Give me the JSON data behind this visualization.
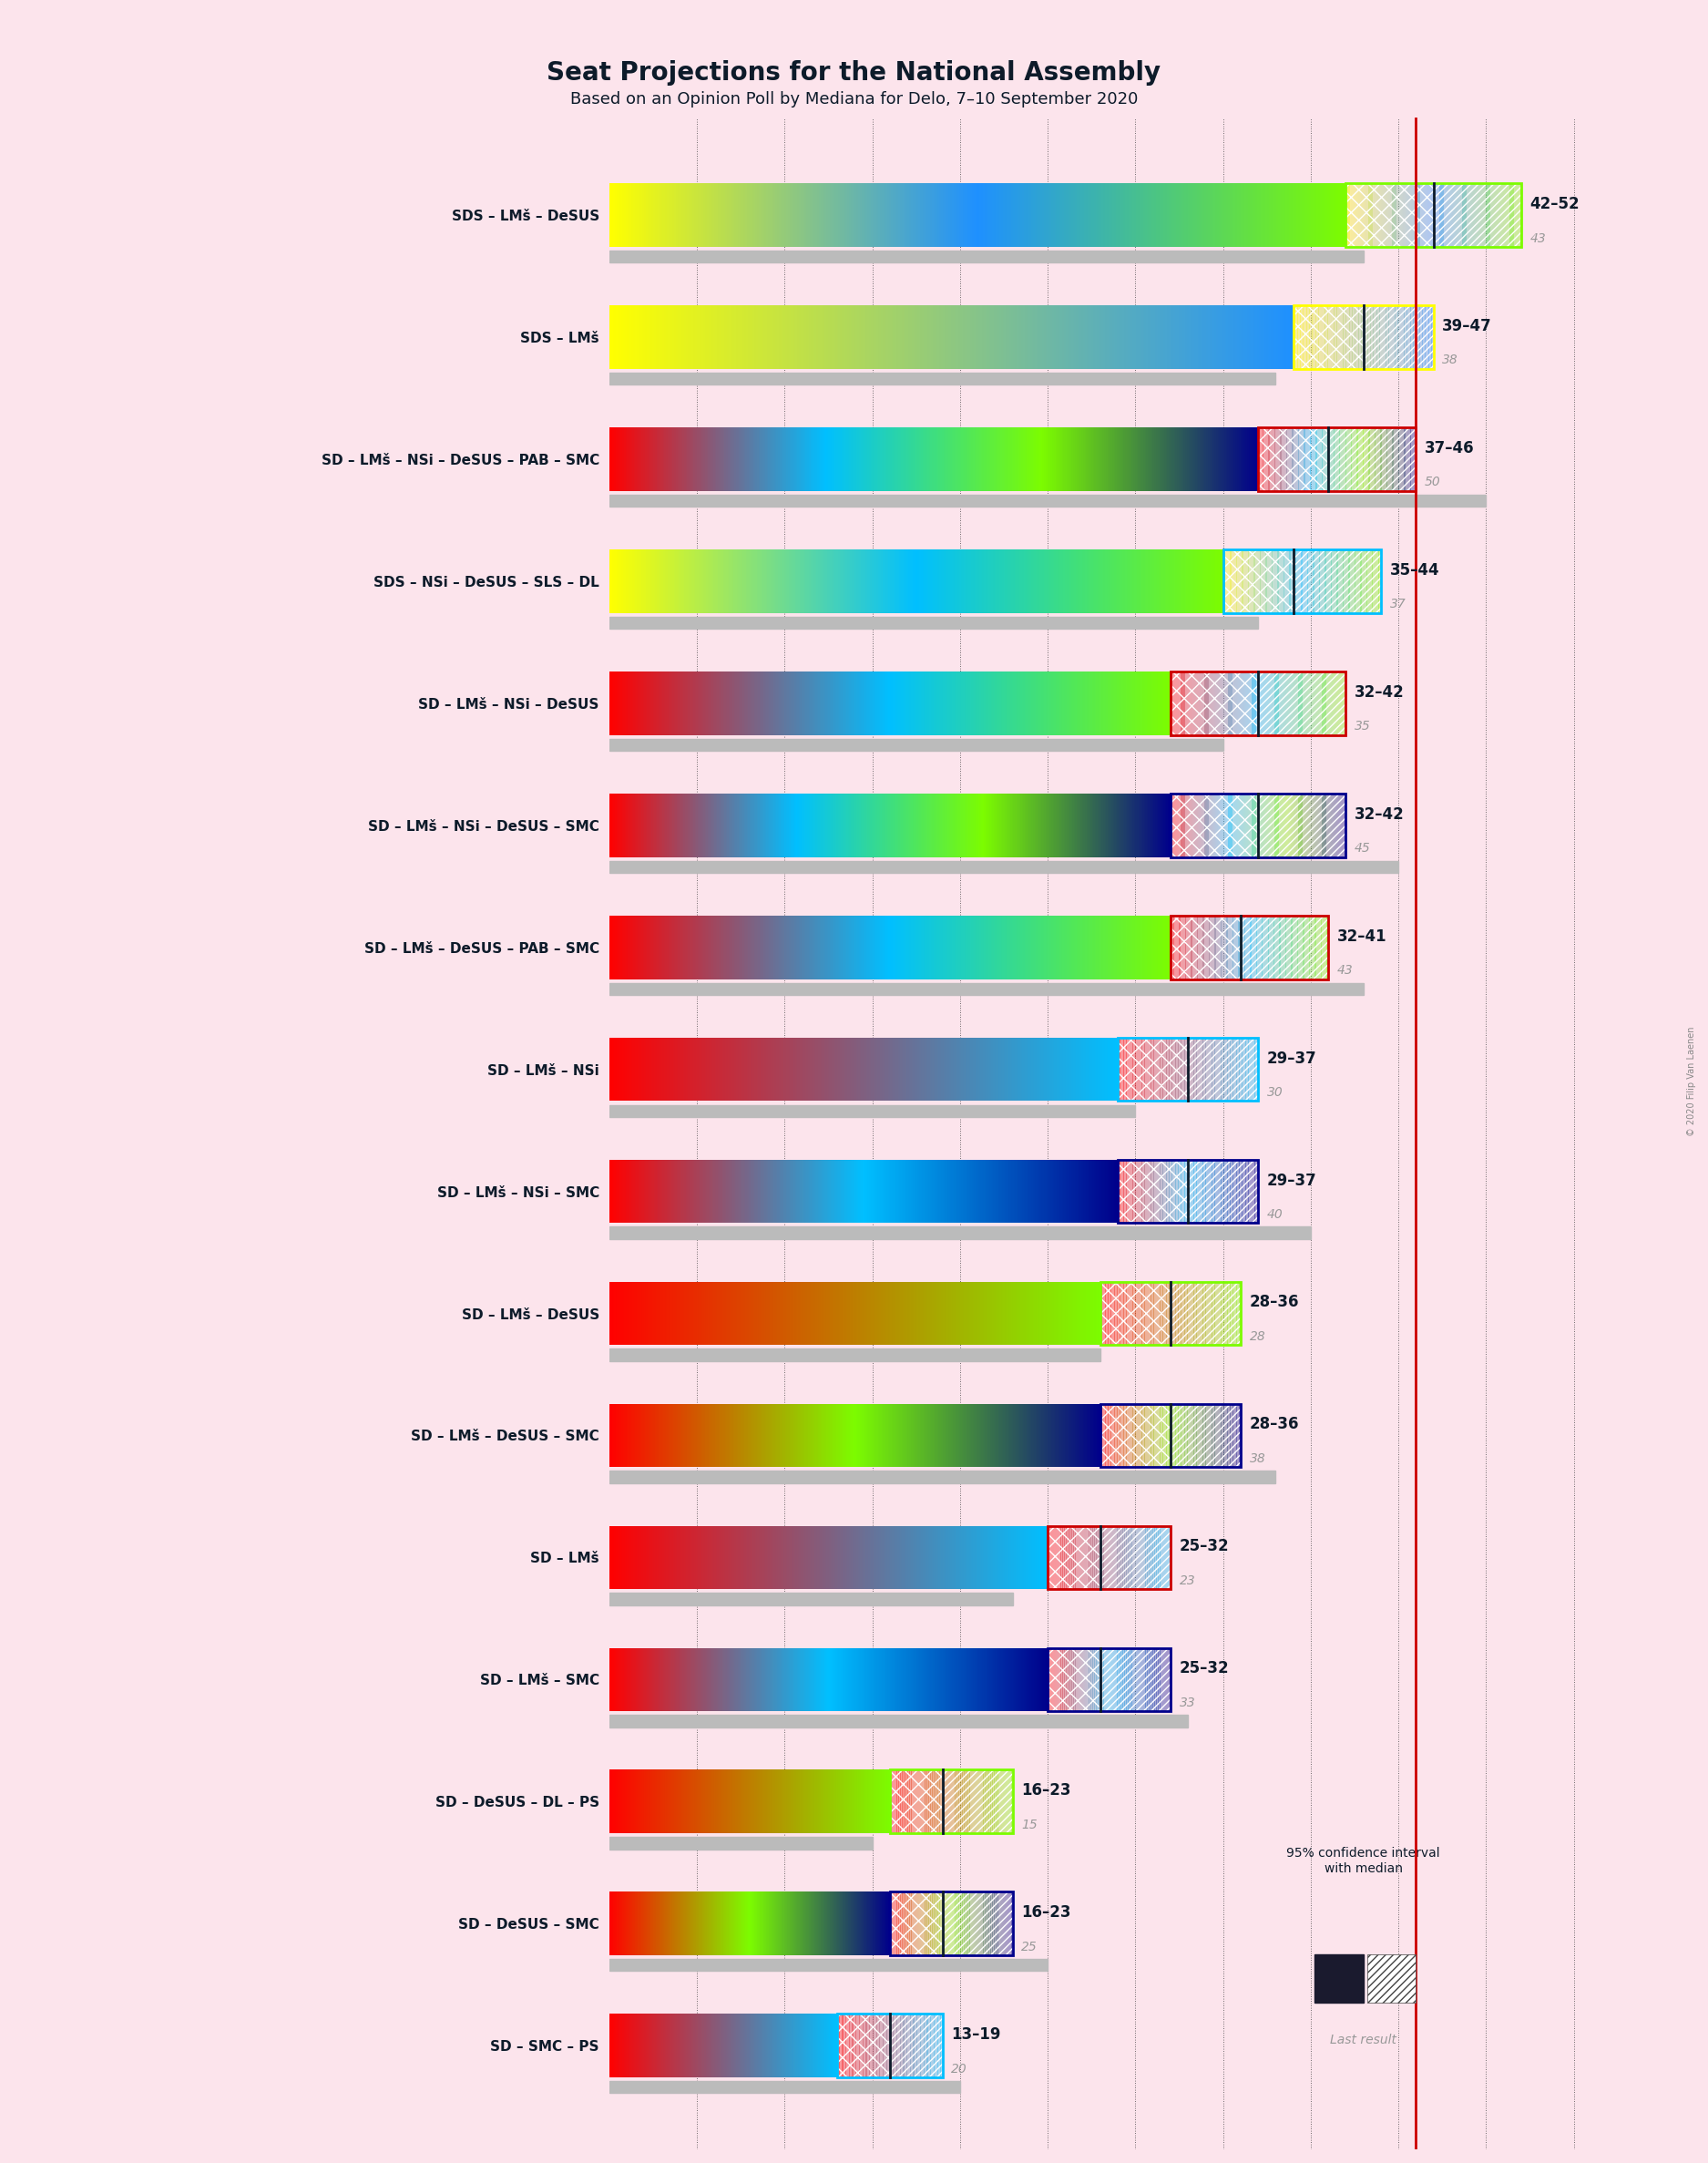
{
  "title": "Seat Projections for the National Assembly",
  "subtitle": "Based on an Opinion Poll by Mediana for Delo, 7–10 September 2020",
  "copyright": "© 2020 Filip Van Laenen",
  "background_color": "#fce4ec",
  "title_color": "#0d1b2a",
  "coalitions": [
    {
      "label": "SDS – LMš – DeSUS",
      "low": 42,
      "high": 52,
      "median": 47,
      "last_result": 43,
      "party_colors": [
        "#FFFF00",
        "#1E90FF",
        "#7CFC00"
      ],
      "ci_border": "#7CFC00"
    },
    {
      "label": "SDS – LMš",
      "low": 39,
      "high": 47,
      "median": 43,
      "last_result": 38,
      "party_colors": [
        "#FFFF00",
        "#1E90FF"
      ],
      "ci_border": "#FFFF00"
    },
    {
      "label": "SD – LMš – NSi – DeSUS – PAB – SMC",
      "low": 37,
      "high": 46,
      "median": 41,
      "last_result": 50,
      "party_colors": [
        "#FF0000",
        "#00BFFF",
        "#7CFC00",
        "#00008B"
      ],
      "ci_border": "#CC0000"
    },
    {
      "label": "SDS – NSi – DeSUS – SLS – DL",
      "low": 35,
      "high": 44,
      "median": 39,
      "last_result": 37,
      "party_colors": [
        "#FFFF00",
        "#00BFFF",
        "#7CFC00"
      ],
      "ci_border": "#00BFFF"
    },
    {
      "label": "SD – LMš – NSi – DeSUS",
      "low": 32,
      "high": 42,
      "median": 37,
      "last_result": 35,
      "party_colors": [
        "#FF0000",
        "#00BFFF",
        "#7CFC00"
      ],
      "ci_border": "#CC0000"
    },
    {
      "label": "SD – LMš – NSi – DeSUS – SMC",
      "low": 32,
      "high": 42,
      "median": 37,
      "last_result": 45,
      "party_colors": [
        "#FF0000",
        "#00BFFF",
        "#7CFC00",
        "#00008B"
      ],
      "ci_border": "#00008B"
    },
    {
      "label": "SD – LMš – DeSUS – PAB – SMC",
      "low": 32,
      "high": 41,
      "median": 36,
      "last_result": 43,
      "party_colors": [
        "#FF0000",
        "#00BFFF",
        "#7CFC00"
      ],
      "ci_border": "#CC0000"
    },
    {
      "label": "SD – LMš – NSi",
      "low": 29,
      "high": 37,
      "median": 33,
      "last_result": 30,
      "party_colors": [
        "#FF0000",
        "#00BFFF"
      ],
      "ci_border": "#00BFFF"
    },
    {
      "label": "SD – LMš – NSi – SMC",
      "low": 29,
      "high": 37,
      "median": 33,
      "last_result": 40,
      "party_colors": [
        "#FF0000",
        "#00BFFF",
        "#00008B"
      ],
      "ci_border": "#00008B"
    },
    {
      "label": "SD – LMš – DeSUS",
      "low": 28,
      "high": 36,
      "median": 32,
      "last_result": 28,
      "party_colors": [
        "#FF0000",
        "#7CFC00"
      ],
      "ci_border": "#7CFC00"
    },
    {
      "label": "SD – LMš – DeSUS – SMC",
      "low": 28,
      "high": 36,
      "median": 32,
      "last_result": 38,
      "party_colors": [
        "#FF0000",
        "#7CFC00",
        "#00008B"
      ],
      "ci_border": "#00008B"
    },
    {
      "label": "SD – LMš",
      "low": 25,
      "high": 32,
      "median": 28,
      "last_result": 23,
      "party_colors": [
        "#FF0000",
        "#00BFFF"
      ],
      "ci_border": "#CC0000"
    },
    {
      "label": "SD – LMš – SMC",
      "low": 25,
      "high": 32,
      "median": 28,
      "last_result": 33,
      "party_colors": [
        "#FF0000",
        "#00BFFF",
        "#00008B"
      ],
      "ci_border": "#00008B"
    },
    {
      "label": "SD – DeSUS – DL – PS",
      "low": 16,
      "high": 23,
      "median": 19,
      "last_result": 15,
      "party_colors": [
        "#FF0000",
        "#7CFC00"
      ],
      "ci_border": "#7CFC00"
    },
    {
      "label": "SD – DeSUS – SMC",
      "low": 16,
      "high": 23,
      "median": 19,
      "last_result": 25,
      "party_colors": [
        "#FF0000",
        "#7CFC00",
        "#00008B"
      ],
      "ci_border": "#00008B"
    },
    {
      "label": "SD – SMC – PS",
      "low": 13,
      "high": 19,
      "median": 16,
      "last_result": 20,
      "party_colors": [
        "#FF0000",
        "#00BFFF"
      ],
      "ci_border": "#00BFFF"
    }
  ],
  "x_max": 55,
  "majority_line": 46,
  "grid_positions": [
    5,
    10,
    15,
    20,
    25,
    30,
    35,
    40,
    45,
    50,
    55
  ]
}
